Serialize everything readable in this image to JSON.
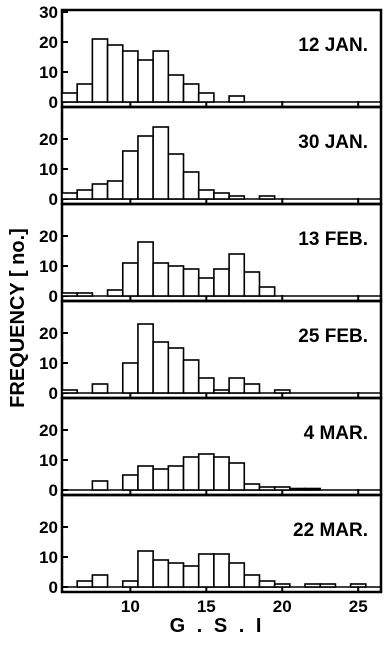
{
  "chart_data": {
    "type": "bar",
    "xlabel": "G . S . I",
    "ylabel": "FREQUENCY [ no.]",
    "xlim": [
      5.5,
      26.5
    ],
    "x_ticks": [
      "10",
      "15",
      "20",
      "25"
    ],
    "bin_width": 1,
    "grid": false,
    "legend": "none",
    "panels": [
      {
        "label": "12 JAN.",
        "ylim": [
          0,
          30
        ],
        "y_ticks": [
          "0",
          "10",
          "20",
          "30"
        ],
        "bins": [
          6,
          7,
          8,
          9,
          10,
          11,
          12,
          13,
          14,
          15,
          17
        ],
        "values": [
          3,
          6,
          21,
          19,
          17,
          14,
          17,
          9,
          6,
          3,
          2
        ]
      },
      {
        "label": "30 JAN.",
        "ylim": [
          0,
          30
        ],
        "y_ticks": [
          "0",
          "10",
          "20"
        ],
        "bins": [
          6,
          7,
          8,
          9,
          10,
          11,
          12,
          13,
          14,
          15,
          16,
          17,
          19
        ],
        "values": [
          2,
          3,
          5,
          6,
          16,
          21,
          24,
          15,
          9,
          3,
          2,
          1,
          1
        ]
      },
      {
        "label": "13 FEB.",
        "ylim": [
          0,
          30
        ],
        "y_ticks": [
          "0",
          "10",
          "20"
        ],
        "bins": [
          6,
          7,
          9,
          10,
          11,
          12,
          13,
          14,
          15,
          16,
          17,
          18,
          19
        ],
        "values": [
          1,
          1,
          2,
          11,
          18,
          11,
          10,
          9,
          6,
          9,
          14,
          8,
          3
        ]
      },
      {
        "label": "25 FEB.",
        "ylim": [
          0,
          30
        ],
        "y_ticks": [
          "0",
          "10",
          "20"
        ],
        "bins": [
          6,
          8,
          10,
          11,
          12,
          13,
          14,
          15,
          16,
          17,
          18,
          20
        ],
        "values": [
          1,
          3,
          10,
          23,
          17,
          15,
          11,
          5,
          1,
          5,
          3,
          1
        ]
      },
      {
        "label": "4 MAR.",
        "ylim": [
          0,
          30
        ],
        "y_ticks": [
          "0",
          "10",
          "20"
        ],
        "bins": [
          8,
          10,
          11,
          12,
          13,
          14,
          15,
          16,
          17,
          18,
          19,
          20,
          21,
          22
        ],
        "values": [
          3,
          5,
          8,
          7,
          8,
          11,
          12,
          11,
          9,
          2,
          1,
          1,
          0.5,
          0.5
        ]
      },
      {
        "label": "22 MAR.",
        "ylim": [
          0,
          30
        ],
        "y_ticks": [
          "0",
          "10",
          "20"
        ],
        "bins": [
          7,
          8,
          10,
          11,
          12,
          13,
          14,
          15,
          16,
          17,
          18,
          19,
          20,
          22,
          23,
          25
        ],
        "values": [
          2,
          4,
          2,
          12,
          9,
          8,
          7,
          11,
          11,
          8,
          4,
          2,
          1,
          1,
          1,
          1
        ]
      }
    ]
  }
}
